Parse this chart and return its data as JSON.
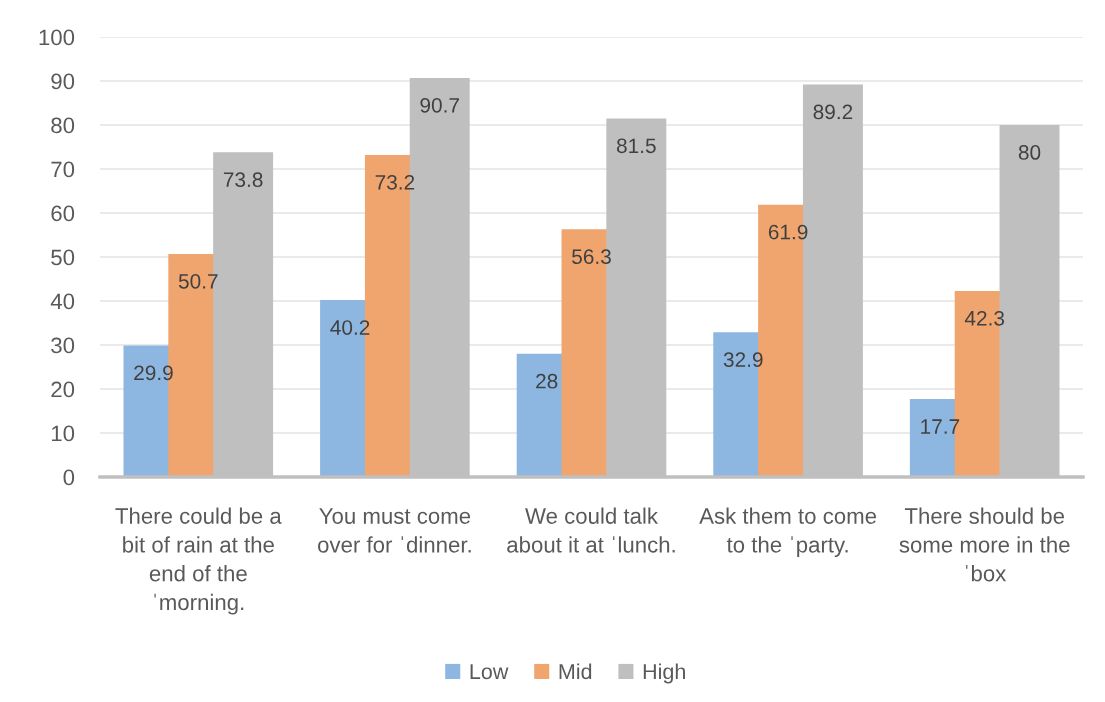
{
  "chart_data": {
    "type": "bar",
    "categories": [
      "There could be a bit of rain at the end of the ˈmorning.",
      "You must come over for ˈdinner.",
      "We could talk about it at ˈlunch.",
      "Ask them to come to the ˈparty.",
      "There should be some more in the ˈbox"
    ],
    "series": [
      {
        "name": "Low",
        "color": "#8db7e0",
        "values": [
          29.9,
          40.2,
          28,
          32.9,
          17.7
        ]
      },
      {
        "name": "Mid",
        "color": "#f0a46e",
        "values": [
          50.7,
          73.2,
          56.3,
          61.9,
          42.3
        ]
      },
      {
        "name": "High",
        "color": "#bfbfbf",
        "values": [
          73.8,
          90.7,
          81.5,
          89.2,
          80
        ]
      }
    ],
    "ylim": [
      0,
      100
    ],
    "yticks": [
      0,
      10,
      20,
      30,
      40,
      50,
      60,
      70,
      80,
      90,
      100
    ],
    "grid": "y",
    "legend": "bottom",
    "data_labels": true
  }
}
